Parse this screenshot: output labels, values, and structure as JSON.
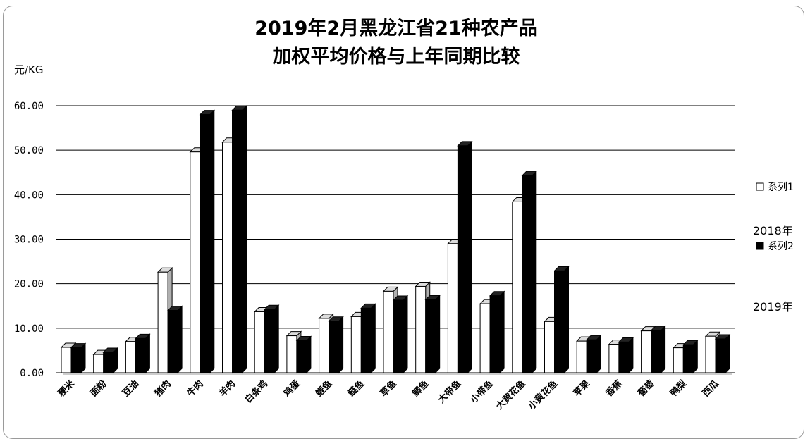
{
  "chart_data": {
    "type": "bar",
    "title_lines": [
      "2019年2月黑龙江省21种农产品",
      "加权平均价格与上年同期比较"
    ],
    "ylabel": "元/KG",
    "ylim": [
      0,
      60
    ],
    "yticks": [
      "0.00",
      "10.00",
      "20.00",
      "30.00",
      "40.00",
      "50.00",
      "60.00"
    ],
    "ytick_values": [
      0,
      10,
      20,
      30,
      40,
      50,
      60
    ],
    "grid": true,
    "legend_position": "right",
    "categories": [
      "粳米",
      "面粉",
      "豆油",
      "猪肉",
      "牛肉",
      "羊肉",
      "白条鸡",
      "鸡蛋",
      "鲤鱼",
      "鲢鱼",
      "草鱼",
      "鲫鱼",
      "大带鱼",
      "小带鱼",
      "大黄花鱼",
      "小黄花鱼",
      "苹果",
      "香蕉",
      "葡萄",
      "鸭梨",
      "西瓜"
    ],
    "series": [
      {
        "name": "系列1",
        "color": "#ffffff",
        "values": [
          5.7,
          4.1,
          7.0,
          22.6,
          49.6,
          51.8,
          13.7,
          8.3,
          12.2,
          12.6,
          18.3,
          19.4,
          29.0,
          15.5,
          38.4,
          11.5,
          7.1,
          6.4,
          9.4,
          5.6,
          8.2
        ]
      },
      {
        "name": "系列2",
        "color": "#000000",
        "values": [
          5.6,
          4.6,
          7.7,
          14.0,
          58.0,
          59.0,
          14.2,
          7.2,
          11.6,
          14.5,
          16.3,
          16.4,
          51.0,
          17.3,
          44.3,
          22.9,
          7.4,
          6.9,
          9.5,
          6.3,
          7.6
        ]
      }
    ]
  },
  "legend": {
    "items": [
      {
        "label": "系列1",
        "note": "2018年"
      },
      {
        "label": "系列2",
        "note": "2019年"
      }
    ]
  }
}
